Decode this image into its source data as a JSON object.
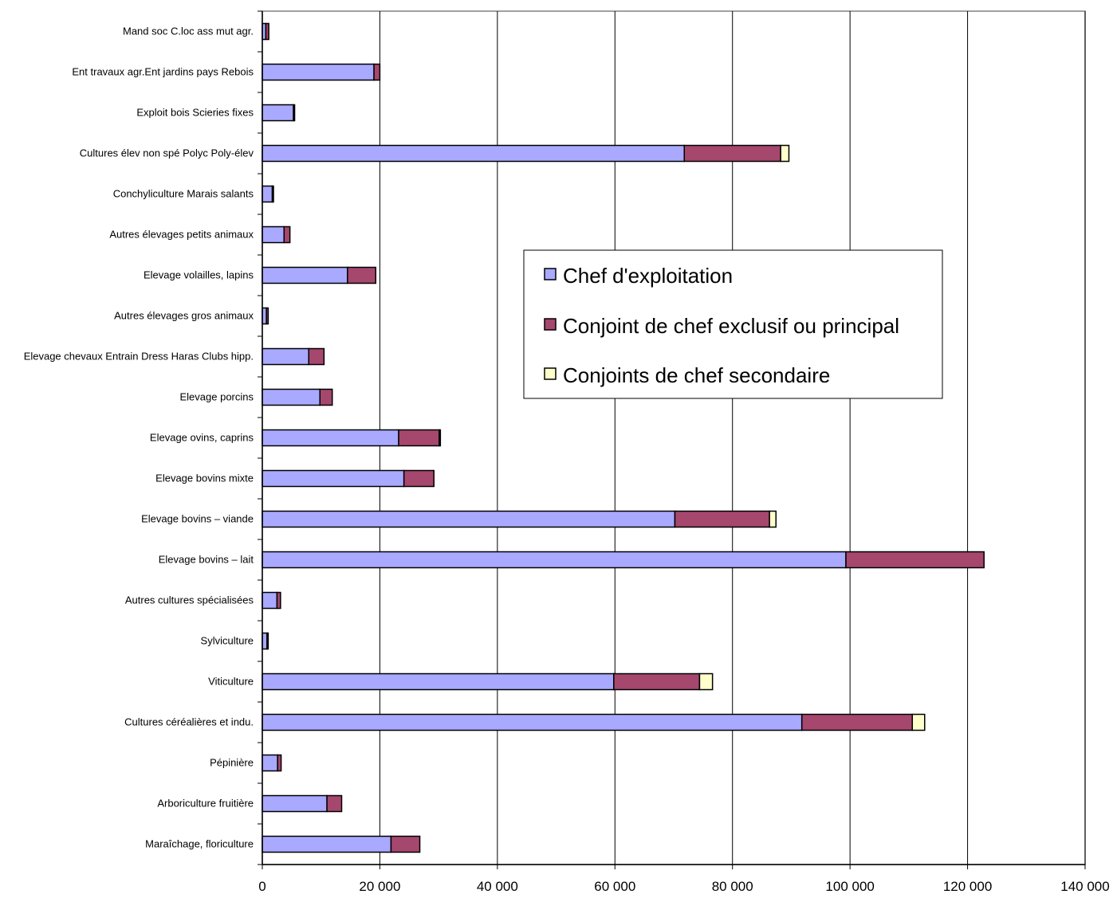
{
  "chart_data": {
    "type": "bar",
    "orientation": "horizontal",
    "stacked": true,
    "categories": [
      "Mand soc C.loc ass mut agr.",
      "Ent travaux agr.Ent jardins pays Rebois",
      "Exploit bois Scieries fixes",
      "Cultures élev non spé Polyc Poly-élev",
      "Conchyliculture Marais salants",
      "Autres élevages petits animaux",
      "Elevage volailles, lapins",
      "Autres élevages gros animaux",
      "Elevage chevaux Entrain Dress Haras  Clubs hipp.",
      "Elevage porcins",
      "Elevage ovins, caprins",
      "Elevage bovins mixte",
      "Elevage bovins – viande",
      "Elevage bovins – lait",
      "Autres cultures spécialisées",
      "Sylviculture",
      "Viticulture",
      "Cultures céréalières et indu.",
      "Pépinière",
      "Arboriculture fruitière",
      "Maraîchage, floriculture"
    ],
    "series": [
      {
        "name": "Chef d'exploitation",
        "color": "#a9a9ff",
        "values": [
          600,
          19000,
          5300,
          71800,
          1700,
          3700,
          14500,
          700,
          7900,
          9800,
          23200,
          24100,
          70200,
          99300,
          2500,
          800,
          59800,
          91800,
          2600,
          11000,
          21900
        ]
      },
      {
        "name": "Conjoint de chef exclusif ou principal",
        "color": "#a6476e",
        "values": [
          500,
          1000,
          200,
          16400,
          200,
          1000,
          4800,
          300,
          2600,
          2100,
          6900,
          5100,
          16100,
          23500,
          600,
          200,
          14600,
          18800,
          600,
          2500,
          4900
        ]
      },
      {
        "name": "Conjoints de chef secondaire",
        "color": "#ffffcc",
        "values": [
          0,
          0,
          0,
          1400,
          0,
          0,
          0,
          0,
          0,
          0,
          200,
          0,
          1100,
          0,
          0,
          0,
          2200,
          2100,
          0,
          0,
          0
        ]
      }
    ],
    "x_ticks": [
      "0",
      "20 000",
      "40 000",
      "60 000",
      "80 000",
      "100 000",
      "120 000",
      "140 000"
    ],
    "xlim": [
      0,
      140000
    ],
    "xgrid": true,
    "legend_position": "right-center"
  }
}
